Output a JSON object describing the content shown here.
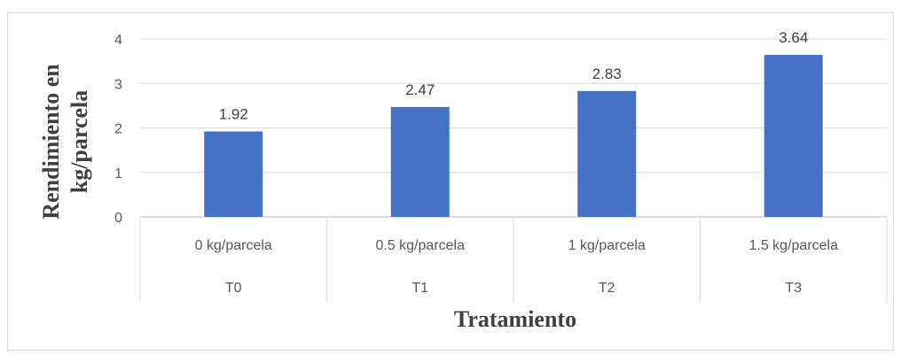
{
  "chart_data": {
    "type": "bar",
    "categories": [
      {
        "label": "0 kg/parcela",
        "group": "T0"
      },
      {
        "label": "0.5 kg/parcela",
        "group": "T1"
      },
      {
        "label": "1 kg/parcela",
        "group": "T2"
      },
      {
        "label": "1.5 kg/parcela",
        "group": "T3"
      }
    ],
    "values": [
      1.92,
      2.47,
      2.83,
      3.64
    ],
    "data_labels": [
      "1.92",
      "2.47",
      "2.83",
      "3.64"
    ],
    "title": "",
    "xlabel": "Tratamiento",
    "ylabel_lines": [
      "Rendimiento en",
      "kg/parcela"
    ],
    "ylim": [
      0,
      4
    ],
    "yticks": [
      0,
      1,
      2,
      3,
      4
    ],
    "grid": true,
    "legend": "none",
    "bar_color": "#4472c4",
    "grid_color": "#d9d9d9"
  }
}
